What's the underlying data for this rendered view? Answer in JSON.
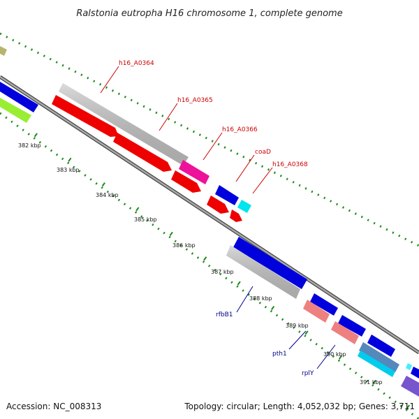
{
  "title": "Ralstonia eutropha H16 chromosome 1, complete genome",
  "accession": "Accession: NC_008313",
  "summary": "Topology: circular; Length: 4,052,032 bp; Genes: 3,711",
  "colors": {
    "backbone": "#888888",
    "tick": "#1a8a1a",
    "label_forward": "#cc0000",
    "label_reverse": "#00008b"
  },
  "scale_ticks": [
    "382 kbp",
    "383 kbp",
    "384 kbp",
    "385 kbp",
    "386 kbp",
    "387 kbp",
    "388 kbp",
    "389 kbp",
    "390 kbp",
    "391 kbp"
  ],
  "gene_labels_top": [
    "h16_A0364",
    "h16_A0365",
    "h16_A0366",
    "coaD",
    "h16_A0368"
  ],
  "gene_labels_bottom": [
    "rfbB1",
    "pth1",
    "rplY"
  ]
}
